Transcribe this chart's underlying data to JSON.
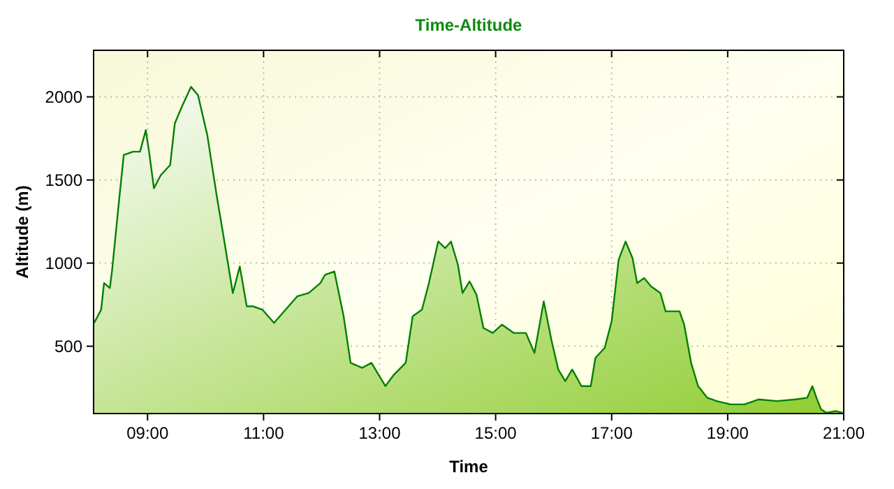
{
  "chart_data": {
    "type": "area",
    "title": "Time-Altitude",
    "xlabel": "Time",
    "ylabel": "Altitude (m)",
    "xlim": [
      8.07,
      21.0
    ],
    "ylim": [
      95,
      2280
    ],
    "xticks": [
      {
        "value": 9,
        "label": "09:00"
      },
      {
        "value": 11,
        "label": "11:00"
      },
      {
        "value": 13,
        "label": "13:00"
      },
      {
        "value": 15,
        "label": "15:00"
      },
      {
        "value": 17,
        "label": "17:00"
      },
      {
        "value": 19,
        "label": "19:00"
      },
      {
        "value": 21,
        "label": "21:00"
      }
    ],
    "yticks": [
      500,
      1000,
      1500,
      2000
    ],
    "grid": true,
    "marker": "none",
    "line_style": "solid",
    "series": [
      {
        "color": "#008000",
        "x": [
          8.08,
          8.2,
          8.25,
          8.35,
          8.39,
          8.51,
          8.59,
          8.75,
          8.87,
          8.97,
          9.03,
          9.11,
          9.23,
          9.39,
          9.47,
          9.59,
          9.75,
          9.87,
          10.03,
          10.19,
          10.31,
          10.47,
          10.59,
          10.71,
          10.82,
          10.98,
          11.18,
          11.38,
          11.58,
          11.78,
          11.98,
          12.06,
          12.22,
          12.38,
          12.5,
          12.7,
          12.86,
          12.98,
          13.1,
          13.25,
          13.45,
          13.57,
          13.73,
          13.85,
          14.01,
          14.13,
          14.23,
          14.35,
          14.43,
          14.55,
          14.67,
          14.79,
          14.95,
          15.11,
          15.31,
          15.52,
          15.67,
          15.83,
          15.96,
          16.08,
          16.2,
          16.32,
          16.48,
          16.64,
          16.72,
          16.88,
          17.0,
          17.12,
          17.24,
          17.36,
          17.44,
          17.56,
          17.68,
          17.84,
          17.93,
          18.17,
          18.25,
          18.37,
          18.49,
          18.65,
          18.81,
          19.05,
          19.29,
          19.53,
          19.85,
          20.17,
          20.37,
          20.46,
          20.53,
          20.61,
          20.7,
          20.86,
          20.98
        ],
        "values": [
          640,
          720,
          880,
          850,
          960,
          1380,
          1650,
          1670,
          1670,
          1800,
          1660,
          1450,
          1530,
          1590,
          1840,
          1940,
          2060,
          2010,
          1770,
          1410,
          1160,
          820,
          980,
          740,
          740,
          720,
          640,
          720,
          800,
          820,
          880,
          930,
          950,
          680,
          400,
          370,
          400,
          330,
          260,
          330,
          400,
          680,
          720,
          880,
          1130,
          1090,
          1130,
          990,
          820,
          890,
          810,
          610,
          580,
          630,
          580,
          580,
          460,
          770,
          540,
          360,
          290,
          360,
          260,
          260,
          430,
          490,
          650,
          1020,
          1130,
          1030,
          880,
          910,
          860,
          820,
          710,
          710,
          630,
          400,
          260,
          190,
          170,
          150,
          150,
          180,
          170,
          180,
          190,
          260,
          190,
          120,
          100,
          110,
          100
        ]
      }
    ]
  }
}
